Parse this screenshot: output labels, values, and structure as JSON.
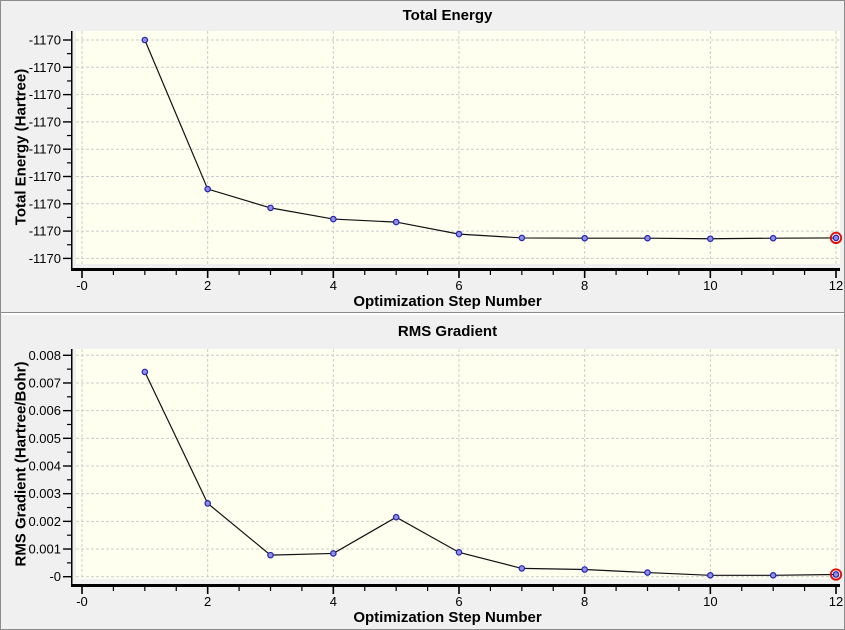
{
  "window": {
    "background_color": "#f0f0f0",
    "plot_background_color": "#fffff0",
    "grid_color": "#cccccc",
    "line_color": "#111111",
    "marker_fill_color": "#9090e8",
    "marker_stroke_color": "#2525ad",
    "highlight_ring_color": "#e01010",
    "axis_color": "#000000"
  },
  "chart_data": [
    {
      "type": "line",
      "title": "Total Energy",
      "xlabel": "Optimization Step Number",
      "ylabel": "Total Energy (Hartree)",
      "x": [
        1,
        2,
        3,
        4,
        5,
        6,
        7,
        8,
        9,
        10,
        11,
        12
      ],
      "x_tick_labels": [
        "-0",
        "2",
        "4",
        "6",
        "8",
        "10",
        "12"
      ],
      "x_major_tick_values": [
        0,
        2,
        4,
        6,
        8,
        10,
        12
      ],
      "x_minor_tick_step": 0.5,
      "xlim": [
        0,
        12
      ],
      "y_tick_labels": [
        "-1170",
        "-1170",
        "-1170",
        "-1170",
        "-1170",
        "-1170",
        "-1170",
        "-1170",
        "-1170"
      ],
      "y_units_below_top_tick": [
        0.0,
        5.46,
        6.15,
        6.56,
        6.67,
        7.11,
        7.25,
        7.26,
        7.26,
        7.28,
        7.26,
        7.25
      ],
      "note": "All nine y-axis tick labels display the rounded value -1170; point heights are recorded as distance from the top tick in tick-interval units",
      "grid": true,
      "legend": false,
      "marker": "circle",
      "highlighted_point_index": 11
    },
    {
      "type": "line",
      "title": "RMS Gradient",
      "xlabel": "Optimization Step Number",
      "ylabel": "RMS Gradient (Hartree/Bohr)",
      "x": [
        1,
        2,
        3,
        4,
        5,
        6,
        7,
        8,
        9,
        10,
        11,
        12
      ],
      "x_tick_labels": [
        "-0",
        "2",
        "4",
        "6",
        "8",
        "10",
        "12"
      ],
      "x_major_tick_values": [
        0,
        2,
        4,
        6,
        8,
        10,
        12
      ],
      "x_minor_tick_step": 0.5,
      "xlim": [
        0,
        12
      ],
      "y_tick_labels": [
        "0.008",
        "0.007",
        "0.006",
        "0.005",
        "0.004",
        "0.003",
        "0.002",
        "0.001",
        "-0"
      ],
      "y_top": 0.008,
      "y_step": 0.001,
      "ylim": [
        0,
        0.008
      ],
      "values": [
        0.0074,
        0.00265,
        0.00078,
        0.00084,
        0.00215,
        0.00088,
        0.0003,
        0.00026,
        0.00015,
        5e-05,
        5e-05,
        8e-05
      ],
      "grid": true,
      "legend": false,
      "marker": "circle",
      "highlighted_point_index": 11
    }
  ]
}
